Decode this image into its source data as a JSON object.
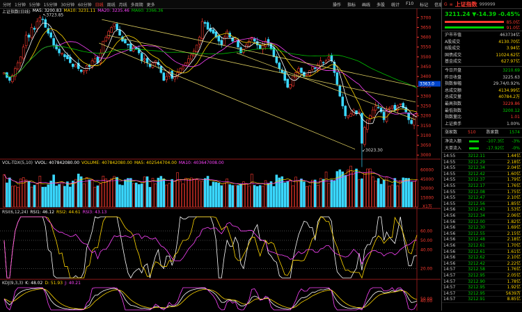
{
  "toolbar": {
    "periods": [
      "分时",
      "1分钟",
      "5分钟",
      "15分钟",
      "30分钟",
      "60分钟",
      "日线",
      "周线",
      "月线",
      "多周期",
      "更多"
    ],
    "active_period": "日线",
    "tools": [
      "操作",
      "指标",
      "画线",
      "多股",
      "统计",
      "F10",
      "标记",
      "信息"
    ]
  },
  "colors": {
    "up": "#ff3b30",
    "down": "#00d000",
    "ma5": "#ffffff",
    "ma10": "#ffd600",
    "ma20": "#ff44ff",
    "ma60": "#00c000",
    "channel": "#e0d060",
    "axis": "#ff3b30"
  },
  "main_chart": {
    "title": "上证指数(日线)",
    "ma": [
      {
        "label": "MA5: 3200.83",
        "color": "#ffffff"
      },
      {
        "label": "MA10: 3231.11",
        "color": "#ffd600"
      },
      {
        "label": "MA20: 3235.46",
        "color": "#ff44ff"
      },
      {
        "label": "MA60: 3366.36",
        "color": "#00c000"
      }
    ],
    "high_label": "3723.85",
    "low_label": "3023.30",
    "crosshair_label": "3363.0"
  },
  "volume_panel": {
    "title": "VOL-TDX(5,10)",
    "items": [
      {
        "label": "VVOL: 407842080.00",
        "color": "#ffffff"
      },
      {
        "label": "VOLUME: 407842080.00",
        "color": "#ffd600"
      },
      {
        "label": "MA5: 402544704.00",
        "color": "#ffd600"
      },
      {
        "label": "MA10: 403647008.00",
        "color": "#ff44ff"
      }
    ],
    "unit": "X1万"
  },
  "rsi_panel": {
    "title": "RSI(6,12,24)",
    "items": [
      {
        "label": "RSI1: 46.12",
        "color": "#ffffff"
      },
      {
        "label": "RSI2: 44.61",
        "color": "#ffd600"
      },
      {
        "label": "RSI3: 43.13",
        "color": "#ff44ff"
      }
    ]
  },
  "kdj_panel": {
    "title": "KDJ(9,3,3)",
    "items": [
      {
        "label": "K: 48.02",
        "color": "#ffffff"
      },
      {
        "label": "D: 51.93",
        "color": "#ffd600"
      },
      {
        "label": "J: 40.21",
        "color": "#ff44ff"
      }
    ]
  },
  "chart_data": {
    "type": "candlestick",
    "title": "上证指数(日线)",
    "price_axis": {
      "ticks": [
        3700,
        3650,
        3600,
        3550,
        3500,
        3450,
        3400,
        3350,
        3300,
        3250,
        3200,
        3150,
        3100,
        3050,
        3000
      ],
      "range": [
        2990,
        3740
      ]
    },
    "closes": [
      3420,
      3395,
      3380,
      3405,
      3440,
      3470,
      3500,
      3550,
      3610,
      3600,
      3650,
      3640,
      3680,
      3700,
      3690,
      3650,
      3620,
      3600,
      3560,
      3540,
      3520,
      3520,
      3500,
      3490,
      3470,
      3450,
      3460,
      3440,
      3425,
      3430,
      3455,
      3450,
      3480,
      3490,
      3470,
      3520,
      3580,
      3600,
      3630,
      3650,
      3670,
      3640,
      3610,
      3580,
      3570,
      3560,
      3530,
      3550,
      3540,
      3520,
      3480,
      3490,
      3470,
      3450,
      3470,
      3480,
      3460,
      3420,
      3380,
      3400,
      3420,
      3390,
      3400,
      3420,
      3440,
      3450,
      3470,
      3490,
      3510,
      3530,
      3560,
      3600,
      3680,
      3670,
      3640,
      3630,
      3620,
      3600,
      3580,
      3560,
      3600,
      3630,
      3600,
      3580,
      3590,
      3550,
      3520,
      3540,
      3560,
      3580,
      3600,
      3580,
      3560,
      3540,
      3560,
      3580,
      3570,
      3540,
      3500,
      3470,
      3440,
      3420,
      3380,
      3345,
      3360,
      3400,
      3420,
      3440,
      3420,
      3400,
      3410,
      3430,
      3450,
      3440,
      3460,
      3480,
      3470,
      3480,
      3500,
      3480,
      3420,
      3360,
      3300,
      3250,
      3200,
      3200,
      3210,
      3230,
      3210,
      3220,
      3060,
      3140,
      3180,
      3200,
      3230,
      3250,
      3240,
      3220,
      3180,
      3230,
      3240,
      3250,
      3230,
      3250,
      3260,
      3240,
      3220,
      3180,
      3160,
      3200,
      3211
    ],
    "rsi_axis": [
      60,
      50,
      40,
      20
    ],
    "kdj_axis": [
      50,
      40
    ]
  },
  "right_panel": {
    "name": "上证指数",
    "code": "999999",
    "price": "3211.24",
    "change": "▼-14.39",
    "change_pct": "-0.45%",
    "bar_labels": [
      "85.0亿",
      "91.0亿"
    ],
    "stats_a": [
      {
        "k": "沪市市值",
        "v": "463734亿",
        "c": "#ccc"
      },
      {
        "k": "A股成交",
        "v": "4130.70亿",
        "c": "#ffd600"
      },
      {
        "k": "B股成交",
        "v": "3.94亿",
        "c": "#ffd600"
      },
      {
        "k": "国债成交",
        "v": "11024.62亿",
        "c": "#ffd600"
      },
      {
        "k": "基金成交",
        "v": "627.97亿",
        "c": "#ffd600"
      }
    ],
    "stats_b": [
      {
        "k": "今日开盘",
        "v": "3210.69",
        "c": "#00d000"
      },
      {
        "k": "昨日收盘",
        "v": "3225.63",
        "c": "#ccc"
      },
      {
        "k": "指数振幅",
        "v": "29.74/0.92%",
        "c": "#ccc"
      },
      {
        "k": "总成交额",
        "v": "4134.99亿",
        "c": "#ffd600"
      },
      {
        "k": "总成交量",
        "v": "40784.2万",
        "c": "#ffd600"
      },
      {
        "k": "最高指数",
        "v": "3229.86",
        "c": "#ff3b30"
      },
      {
        "k": "最低指数",
        "v": "3200.12",
        "c": "#00d000"
      },
      {
        "k": "指数量比",
        "v": "1.01",
        "c": "#ff3b30"
      },
      {
        "k": "上证换手",
        "v": "1.00%",
        "c": "#ccc"
      }
    ],
    "up_label": "涨家数",
    "up_count": "510",
    "down_label": "跌家数",
    "down_count": "1574",
    "flow": [
      {
        "k": "净流入额",
        "v": "-107.3亿",
        "p": "-3%"
      },
      {
        "k": "大单流入",
        "v": "-17.92亿",
        "p": "-0%"
      }
    ],
    "ticks": [
      {
        "t": "14:55",
        "p": "3212.11",
        "v": "1.44亿"
      },
      {
        "t": "14:55",
        "p": "3212.29",
        "v": "2.18亿"
      },
      {
        "t": "14:55",
        "p": "3212.34",
        "v": "2.04亿"
      },
      {
        "t": "14:55",
        "p": "3212.42",
        "v": "1.60亿"
      },
      {
        "t": "14:55",
        "p": "3212.37",
        "v": "1.79亿"
      },
      {
        "t": "14:55",
        "p": "3212.17",
        "v": "1.76亿"
      },
      {
        "t": "14:55",
        "p": "3212.08",
        "v": "1.75亿"
      },
      {
        "t": "14:55",
        "p": "3212.47",
        "v": "2.10亿"
      },
      {
        "t": "14:55",
        "p": "3212.56",
        "v": "1.85亿"
      },
      {
        "t": "14:56",
        "p": "3212.43",
        "v": "1.53亿"
      },
      {
        "t": "14:56",
        "p": "3212.34",
        "v": "2.06亿"
      },
      {
        "t": "14:56",
        "p": "3212.00",
        "v": "1.82亿"
      },
      {
        "t": "14:56",
        "p": "3212.30",
        "v": "1.69亿"
      },
      {
        "t": "14:56",
        "p": "3212.55",
        "v": "2.15亿"
      },
      {
        "t": "14:56",
        "p": "3212.48",
        "v": "2.18亿"
      },
      {
        "t": "14:56",
        "p": "3212.61",
        "v": "1.70亿"
      },
      {
        "t": "14:56",
        "p": "3212.61",
        "v": "1.61亿"
      },
      {
        "t": "14:56",
        "p": "3212.62",
        "v": "2.10亿"
      },
      {
        "t": "14:56",
        "p": "3212.42",
        "v": "2.22亿"
      },
      {
        "t": "14:57",
        "p": "3212.58",
        "v": "1.76亿"
      },
      {
        "t": "14:57",
        "p": "3212.95",
        "v": "2.05亿"
      },
      {
        "t": "14:57",
        "p": "3212.90",
        "v": "1.78亿"
      },
      {
        "t": "14:57",
        "p": "3212.95",
        "v": "1.92亿"
      },
      {
        "t": "14:57",
        "p": "3212.95",
        "v": "5639万"
      },
      {
        "t": "14:57",
        "p": "3212.91",
        "v": "8.85亿"
      }
    ]
  }
}
